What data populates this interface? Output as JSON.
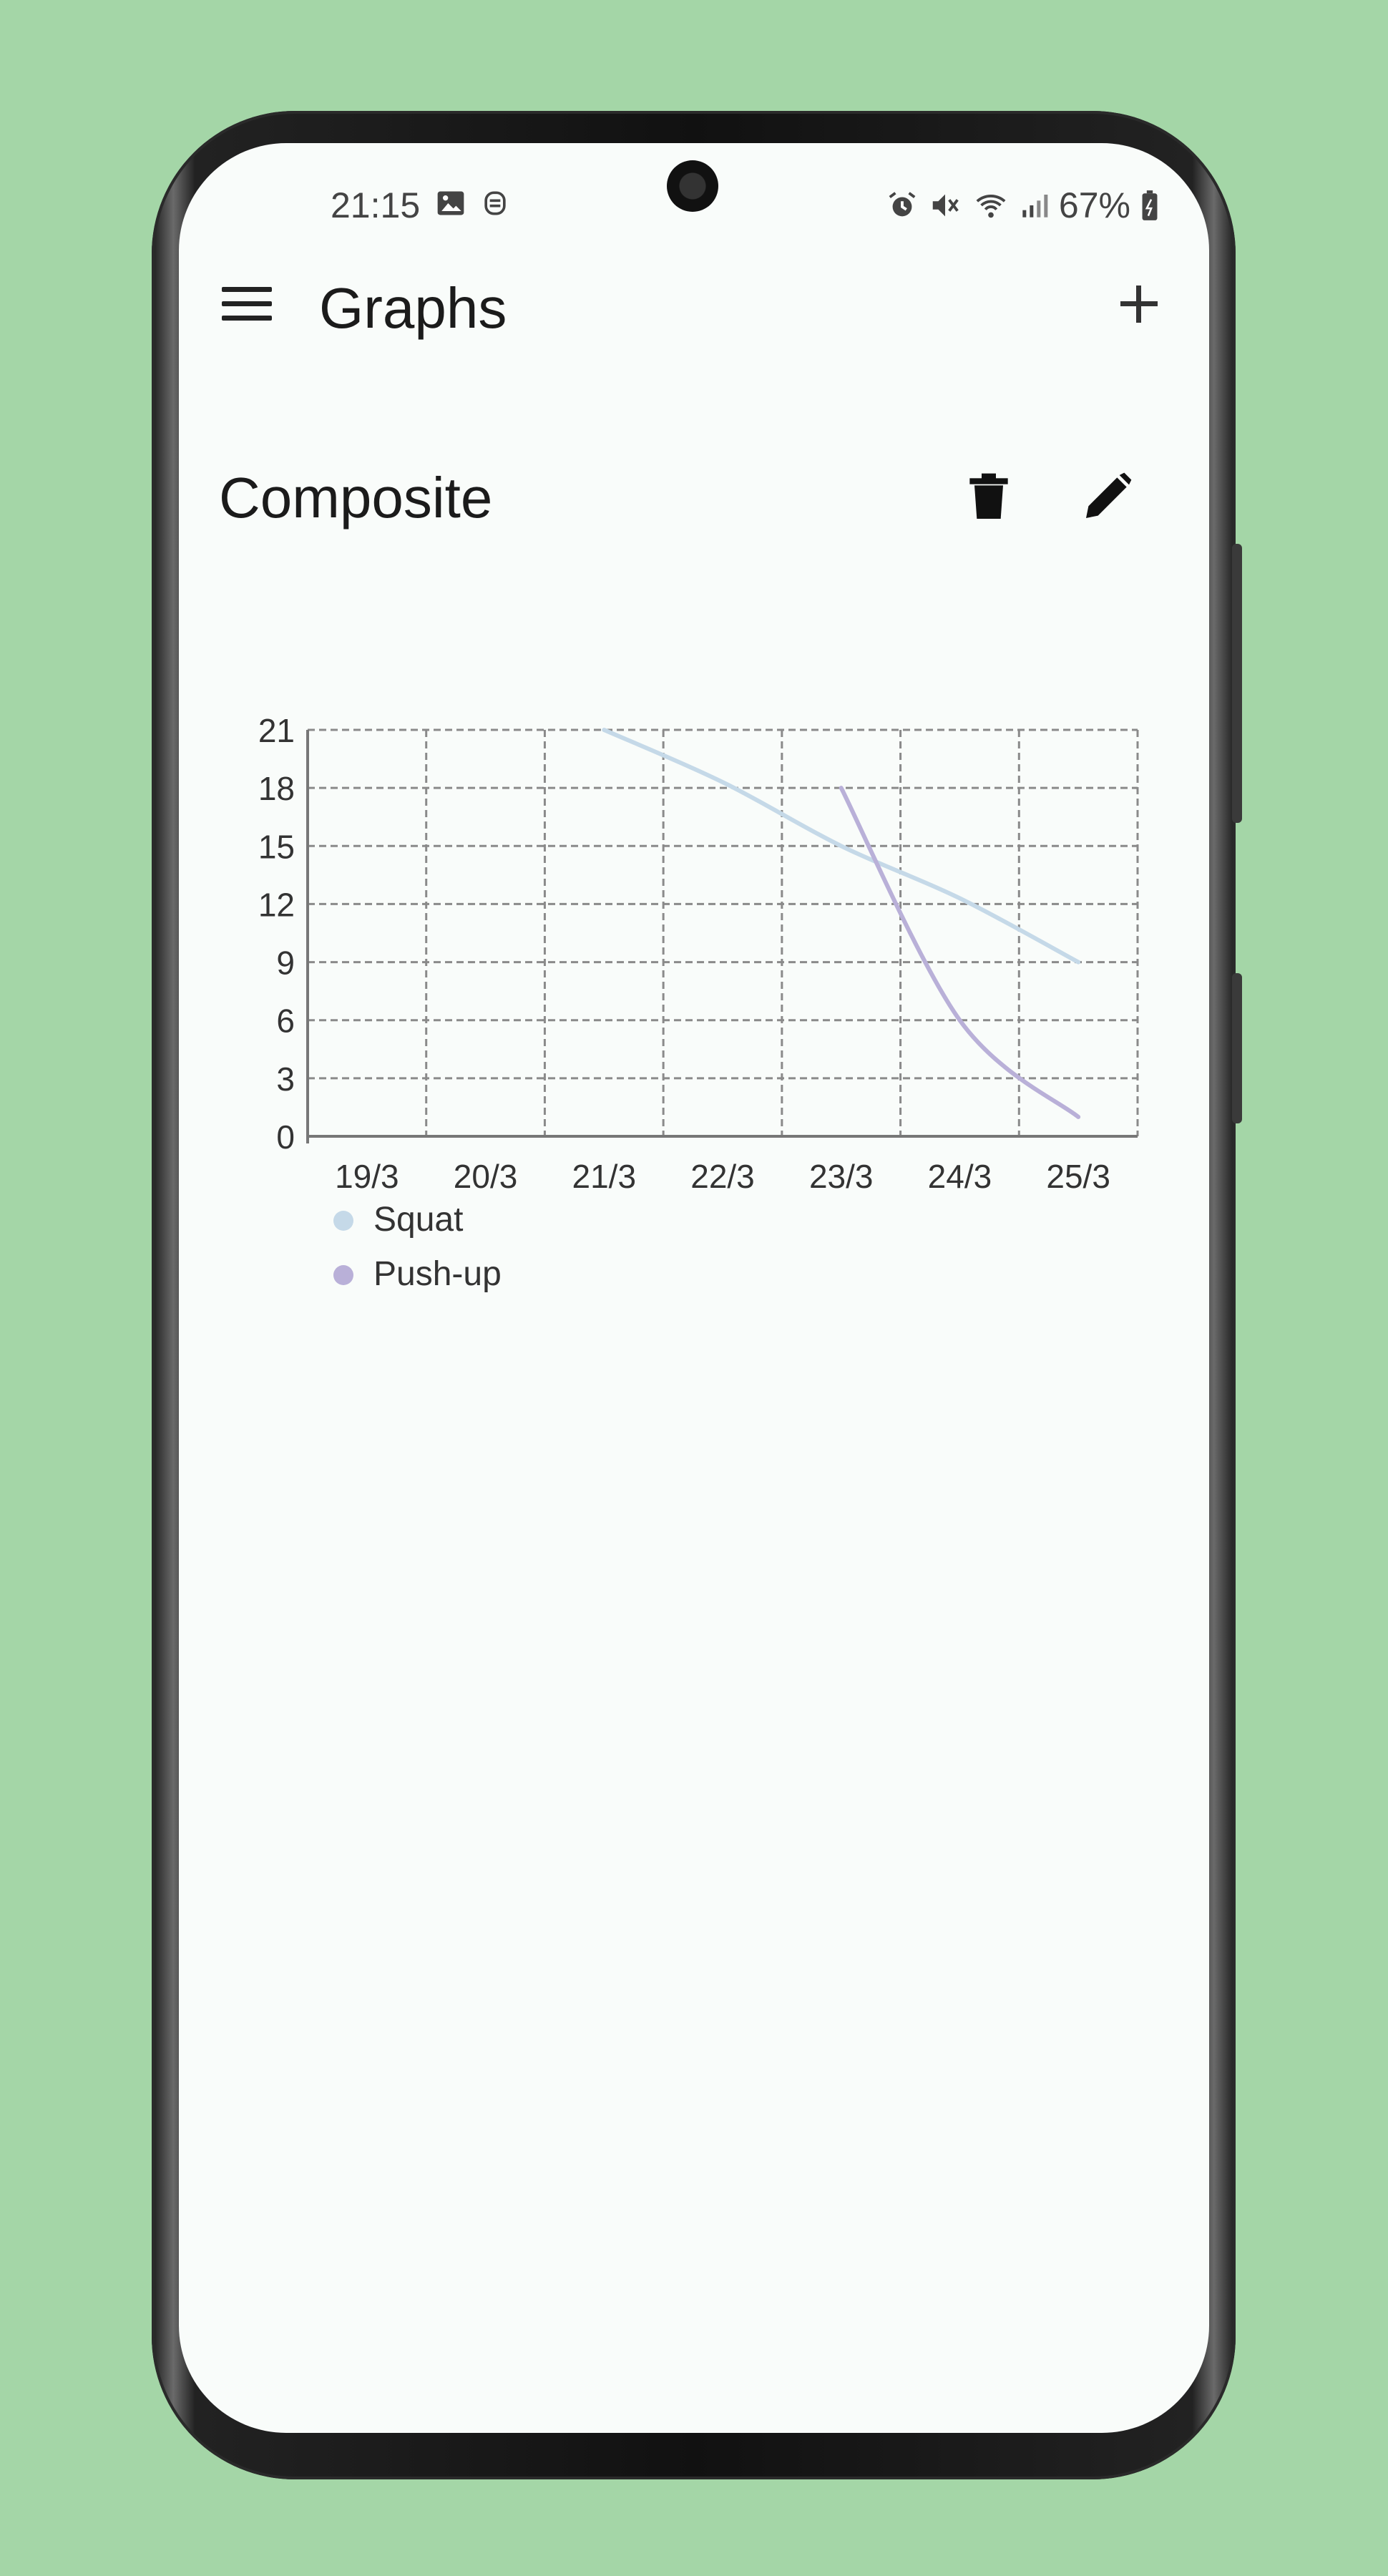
{
  "status_bar": {
    "time": "21:15",
    "battery": "67%",
    "left_icons": [
      "image-icon",
      "robot-icon"
    ],
    "right_icons": [
      "alarm-icon",
      "mute-icon",
      "wifi-icon",
      "signal-icon",
      "battery-icon"
    ]
  },
  "app_bar": {
    "title": "Graphs",
    "menu_icon": "menu-icon",
    "add_icon": "add-icon"
  },
  "graph_card": {
    "title": "Composite",
    "delete_icon": "trash-icon",
    "edit_icon": "pencil-icon"
  },
  "chart_data": {
    "type": "line",
    "categories": [
      "19/3",
      "20/3",
      "21/3",
      "22/3",
      "23/3",
      "24/3",
      "25/3"
    ],
    "y_ticks": [
      0,
      3,
      6,
      9,
      12,
      15,
      18,
      21
    ],
    "ylim": [
      0,
      21
    ],
    "grid": true,
    "legend_position": "bottom-left",
    "series": [
      {
        "name": "Squat",
        "color": "#c5d9e8",
        "x": [
          "21/3",
          "22/3",
          "23/3",
          "24/3",
          "25/3"
        ],
        "values": [
          21,
          18.3,
          15,
          12.3,
          9
        ]
      },
      {
        "name": "Push-up",
        "color": "#b9b0d8",
        "x": [
          "23/3",
          "24/3",
          "25/3"
        ],
        "values": [
          18,
          6,
          1
        ]
      }
    ]
  }
}
